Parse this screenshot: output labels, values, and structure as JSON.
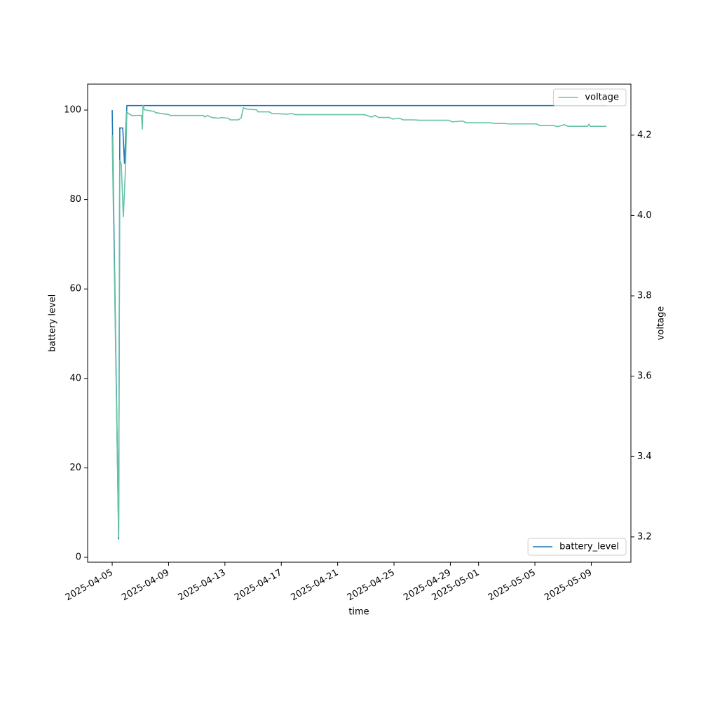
{
  "chart_data": {
    "type": "line",
    "xlabel": "time",
    "ylabel": "battery level",
    "y2label": "voltage",
    "xlim": [
      "2025-04-03T06:10",
      "2025-05-11T19:30"
    ],
    "xticks": [
      "2025-04-05",
      "2025-04-09",
      "2025-04-13",
      "2025-04-17",
      "2025-04-21",
      "2025-04-25",
      "2025-04-29",
      "2025-05-01",
      "2025-05-05",
      "2025-05-09"
    ],
    "ylim": [
      -1.1,
      105.8
    ],
    "yticks": [
      0,
      20,
      40,
      60,
      80,
      100
    ],
    "y2lim": [
      3.137,
      4.327
    ],
    "y2ticks": [
      3.2,
      3.4,
      3.6,
      3.8,
      {
        "value": 4,
        "label": "4.0"
      },
      4.2
    ],
    "series": [
      {
        "name": "battery_level",
        "color": "#1f77b4",
        "axis": "y",
        "legend": "lower right",
        "x": [
          "2025-04-05T00:00",
          "2025-04-05T11:00",
          "2025-04-05T13:00",
          "2025-04-05T18:00",
          "2025-04-05T21:00",
          "2025-04-06T01:00",
          "2025-05-10T01:50"
        ],
        "values": [
          100,
          4,
          96,
          96,
          88,
          101,
          101
        ]
      },
      {
        "name": "voltage",
        "color": "#66c2a5",
        "axis": "y2",
        "legend": "upper right",
        "x": [
          "2025-04-05T00:00",
          "2025-04-05T11:00",
          "2025-04-05T13:00",
          "2025-04-05T15:30",
          "2025-04-05T19:00",
          "2025-04-05T22:40",
          "2025-04-06T01:00",
          "2025-04-06T03:30",
          "2025-04-06T09:30",
          "2025-04-07T02:00",
          "2025-04-07T03:20",
          "2025-04-07T04:30",
          "2025-04-07T07:00",
          "2025-04-07T23:40",
          "2025-04-08T02:00",
          "2025-04-09T00:40",
          "2025-04-09T03:00",
          "2025-04-11T11:10",
          "2025-04-11T13:40",
          "2025-04-11T18:20",
          "2025-04-12T01:30",
          "2025-04-12T13:30",
          "2025-04-12T18:20",
          "2025-04-13T06:10",
          "2025-04-13T08:40",
          "2025-04-13T23:00",
          "2025-04-14T03:40",
          "2025-04-14T07:20",
          "2025-04-14T13:10",
          "2025-04-15T06:00",
          "2025-04-15T08:20",
          "2025-04-16T03:30",
          "2025-04-16T08:10",
          "2025-04-17T10:30",
          "2025-04-17T16:30",
          "2025-04-18T00:50",
          "2025-04-22T21:50",
          "2025-04-23T09:50",
          "2025-04-23T15:50",
          "2025-04-23T21:40",
          "2025-04-24T15:40",
          "2025-04-24T21:40",
          "2025-04-25T09:30",
          "2025-04-25T15:30",
          "2025-04-26T09:20",
          "2025-04-26T21:20",
          "2025-04-28T21:10",
          "2025-04-29T03:10",
          "2025-04-29T21:00",
          "2025-04-30T03:00",
          "2025-05-01T20:50",
          "2025-05-02T02:40",
          "2025-05-02T20:40",
          "2025-05-03T02:40",
          "2025-05-05T02:20",
          "2025-05-05T08:20",
          "2025-05-06T08:10",
          "2025-05-06T14:10",
          "2025-05-07T02:10",
          "2025-05-07T08:10",
          "2025-05-08T17:30",
          "2025-05-08T20:00",
          "2025-05-08T22:20",
          "2025-05-10T01:50"
        ],
        "values": [
          4.2,
          3.2,
          4.139,
          4.127,
          3.996,
          4.118,
          4.258,
          4.254,
          4.249,
          4.249,
          4.214,
          4.275,
          4.263,
          4.259,
          4.256,
          4.251,
          4.249,
          4.249,
          4.245,
          4.249,
          4.244,
          4.242,
          4.244,
          4.242,
          4.238,
          4.238,
          4.243,
          4.268,
          4.265,
          4.263,
          4.258,
          4.258,
          4.254,
          4.252,
          4.254,
          4.251,
          4.251,
          4.245,
          4.249,
          4.244,
          4.244,
          4.24,
          4.242,
          4.238,
          4.238,
          4.237,
          4.237,
          4.233,
          4.235,
          4.231,
          4.231,
          4.229,
          4.229,
          4.228,
          4.228,
          4.224,
          4.224,
          4.221,
          4.226,
          4.222,
          4.222,
          4.227,
          4.222,
          4.222
        ]
      }
    ]
  }
}
